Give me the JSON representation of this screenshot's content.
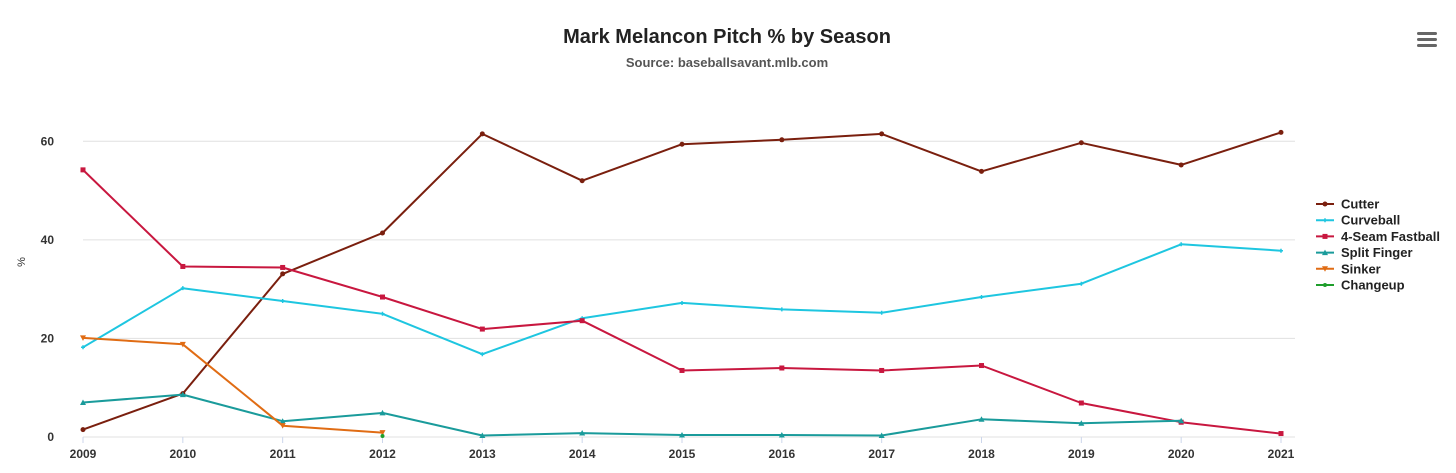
{
  "chart_data": {
    "type": "line",
    "title": "Mark Melancon Pitch % by Season",
    "subtitle": "Source: baseballsavant.mlb.com",
    "xlabel": "",
    "ylabel": "%",
    "categories": [
      "2009",
      "2010",
      "2011",
      "2012",
      "2013",
      "2014",
      "2015",
      "2016",
      "2017",
      "2018",
      "2019",
      "2020",
      "2021"
    ],
    "yticks": [
      "0",
      "20",
      "40",
      "60"
    ],
    "ylim": [
      0,
      70
    ],
    "grid": true,
    "legend": "right",
    "series": [
      {
        "name": "Cutter",
        "color": "#7a1f0e",
        "marker": "circle",
        "values": [
          1.5,
          8.8,
          33.1,
          41.4,
          61.5,
          52.0,
          59.4,
          60.3,
          61.5,
          53.9,
          59.7,
          55.2,
          61.8
        ]
      },
      {
        "name": "Curveball",
        "color": "#1ec6e0",
        "marker": "cross",
        "values": [
          18.2,
          30.2,
          27.6,
          25.0,
          16.8,
          24.1,
          27.2,
          25.9,
          25.2,
          28.4,
          31.1,
          39.1,
          37.8
        ]
      },
      {
        "name": "4-Seam Fastball",
        "color": "#c8173f",
        "marker": "square",
        "values": [
          54.2,
          34.6,
          34.4,
          28.4,
          21.9,
          23.6,
          13.5,
          14.0,
          13.5,
          14.5,
          6.9,
          3.0,
          0.7
        ]
      },
      {
        "name": "Split Finger",
        "color": "#1a9b9b",
        "marker": "triangle",
        "values": [
          7.0,
          8.6,
          3.2,
          4.9,
          0.3,
          0.8,
          0.4,
          0.4,
          0.3,
          3.6,
          2.8,
          3.3,
          null
        ]
      },
      {
        "name": "Sinker",
        "color": "#e06c14",
        "marker": "triangle-down",
        "values": [
          20.1,
          18.8,
          2.3,
          0.9,
          null,
          null,
          null,
          null,
          null,
          null,
          null,
          null,
          null
        ]
      },
      {
        "name": "Changeup",
        "color": "#1f9e2c",
        "marker": "dot",
        "values": [
          null,
          null,
          null,
          0.2,
          null,
          null,
          null,
          null,
          null,
          null,
          null,
          null,
          null
        ]
      }
    ]
  },
  "menu_icon": "hamburger-menu-icon"
}
